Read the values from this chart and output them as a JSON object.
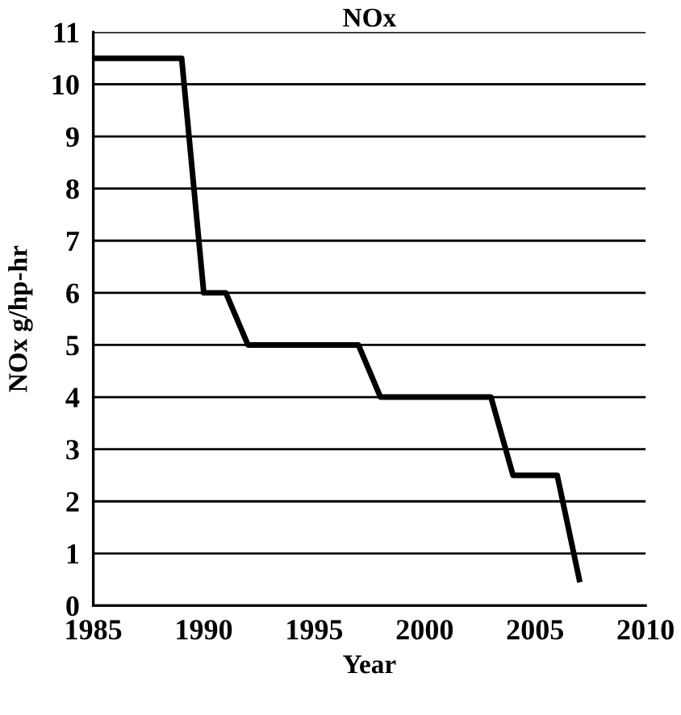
{
  "chart_data": {
    "type": "line",
    "title": "NOx",
    "xlabel": "Year",
    "ylabel": "NOx g/hp-hr",
    "x": [
      1985,
      1989,
      1990,
      1991,
      1992,
      1997,
      1998,
      2003,
      2004,
      2006,
      2007
    ],
    "series": [
      {
        "color": "#000000",
        "values": [
          10.5,
          10.5,
          6,
          6,
          5,
          5,
          4,
          4,
          2.5,
          2.5,
          0.5
        ]
      }
    ],
    "xlim": [
      1985,
      2010
    ],
    "xticks": [
      1985,
      1990,
      1995,
      2000,
      2005,
      2010
    ],
    "ylim": [
      0,
      11
    ],
    "yticks": [
      0,
      1,
      2,
      3,
      4,
      5,
      6,
      7,
      8,
      9,
      10,
      11
    ],
    "grid": "y",
    "legend": false,
    "marker": "none",
    "line_style": "solid"
  }
}
